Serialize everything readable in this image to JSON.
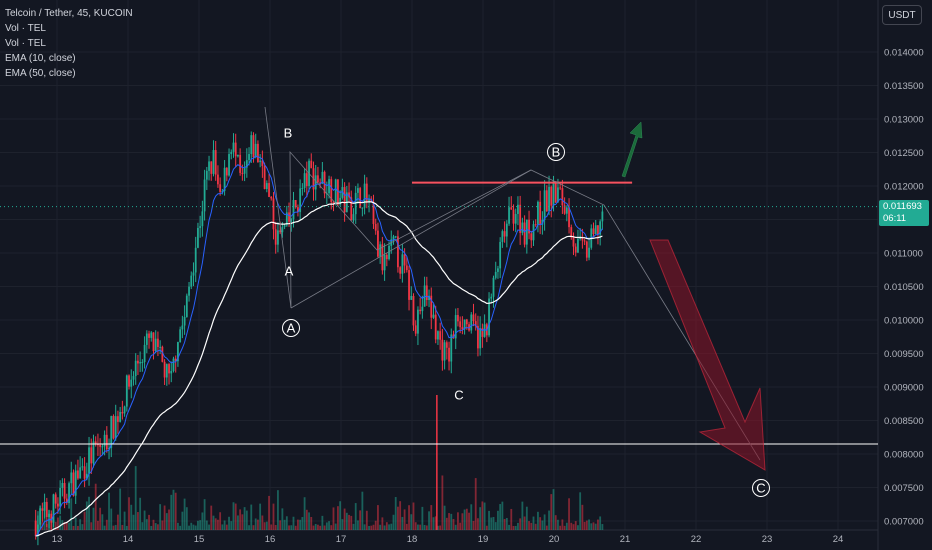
{
  "legend": {
    "symbol": "Telcoin / Tether, 45, KUCOIN",
    "vol1": "Vol · TEL",
    "vol2": "Vol · TEL",
    "ema10": "EMA (10, close)",
    "ema50": "EMA (50, close)"
  },
  "currency_button": "USDT",
  "last_price": {
    "value": "0.011693",
    "countdown": "06:11",
    "color": "#22ab94"
  },
  "colors": {
    "up": "#22ab94",
    "down": "#f23645",
    "bg": "#131722",
    "resistance": "#f7525f",
    "ema50": "#ffffff",
    "ema10": "#2962ff"
  },
  "chart_data": {
    "type": "candlestick",
    "y_ticks": [
      "0.014000",
      "0.013500",
      "0.013000",
      "0.012500",
      "0.012000",
      "0.011500",
      "0.011000",
      "0.010500",
      "0.010000",
      "0.009500",
      "0.009000",
      "0.008500",
      "0.008000",
      "0.007500",
      "0.007000"
    ],
    "x_ticks": [
      "13",
      "14",
      "15",
      "16",
      "17",
      "18",
      "19",
      "20",
      "21",
      "22",
      "23",
      "24"
    ],
    "ylim": [
      0.007,
      0.0143
    ],
    "close_path": [
      [
        12.7,
        0.007
      ],
      [
        12.9,
        0.00715
      ],
      [
        13.1,
        0.0074
      ],
      [
        13.3,
        0.0077
      ],
      [
        13.5,
        0.008
      ],
      [
        13.7,
        0.0082
      ],
      [
        13.9,
        0.0087
      ],
      [
        14.1,
        0.0093
      ],
      [
        14.3,
        0.0097
      ],
      [
        14.4,
        0.0095
      ],
      [
        14.5,
        0.0093
      ],
      [
        14.6,
        0.009
      ],
      [
        14.7,
        0.0098
      ],
      [
        14.8,
        0.01
      ],
      [
        14.9,
        0.0108
      ],
      [
        15.0,
        0.0114
      ],
      [
        15.1,
        0.0121
      ],
      [
        15.2,
        0.0124
      ],
      [
        15.3,
        0.0117
      ],
      [
        15.45,
        0.0127
      ],
      [
        15.6,
        0.012
      ],
      [
        15.75,
        0.0126
      ],
      [
        15.9,
        0.0123
      ],
      [
        16.0,
        0.0117
      ],
      [
        16.1,
        0.0112
      ],
      [
        16.25,
        0.0114
      ],
      [
        16.4,
        0.0118
      ],
      [
        16.55,
        0.0122
      ],
      [
        16.7,
        0.0121
      ],
      [
        16.85,
        0.012
      ],
      [
        17.0,
        0.0118
      ],
      [
        17.15,
        0.0117
      ],
      [
        17.3,
        0.0119
      ],
      [
        17.4,
        0.0117
      ],
      [
        17.5,
        0.0111
      ],
      [
        17.6,
        0.0108
      ],
      [
        17.75,
        0.0111
      ],
      [
        17.9,
        0.0107
      ],
      [
        18.05,
        0.01
      ],
      [
        18.2,
        0.0104
      ],
      [
        18.35,
        0.0098
      ],
      [
        18.5,
        0.0094
      ],
      [
        18.65,
        0.0101
      ],
      [
        18.8,
        0.0099
      ],
      [
        19.0,
        0.0097
      ],
      [
        19.15,
        0.0105
      ],
      [
        19.3,
        0.0113
      ],
      [
        19.45,
        0.0117
      ],
      [
        19.6,
        0.0113
      ],
      [
        19.75,
        0.0115
      ],
      [
        19.9,
        0.0118
      ],
      [
        20.05,
        0.0119
      ],
      [
        20.2,
        0.0116
      ],
      [
        20.3,
        0.0111
      ],
      [
        20.45,
        0.011
      ],
      [
        20.6,
        0.0113
      ],
      [
        20.7,
        0.011693
      ]
    ],
    "resistance": {
      "price": 0.01205,
      "from": 18.0,
      "to": 21.1
    },
    "support": {
      "price": 0.00815
    },
    "wave_labels": [
      {
        "text": "B",
        "x": 16.25,
        "price": 0.0131
      },
      {
        "text": "A",
        "x": 16.25,
        "price": 0.0108
      },
      {
        "text": "A",
        "x": 16.3,
        "price": 0.01
      },
      {
        "text": "C",
        "x": 18.6,
        "price": 0.0088
      },
      {
        "text": "B",
        "x": 20.0,
        "price": 0.0125
      },
      {
        "text": "C",
        "x": 22.85,
        "price": 0.00765
      }
    ]
  }
}
